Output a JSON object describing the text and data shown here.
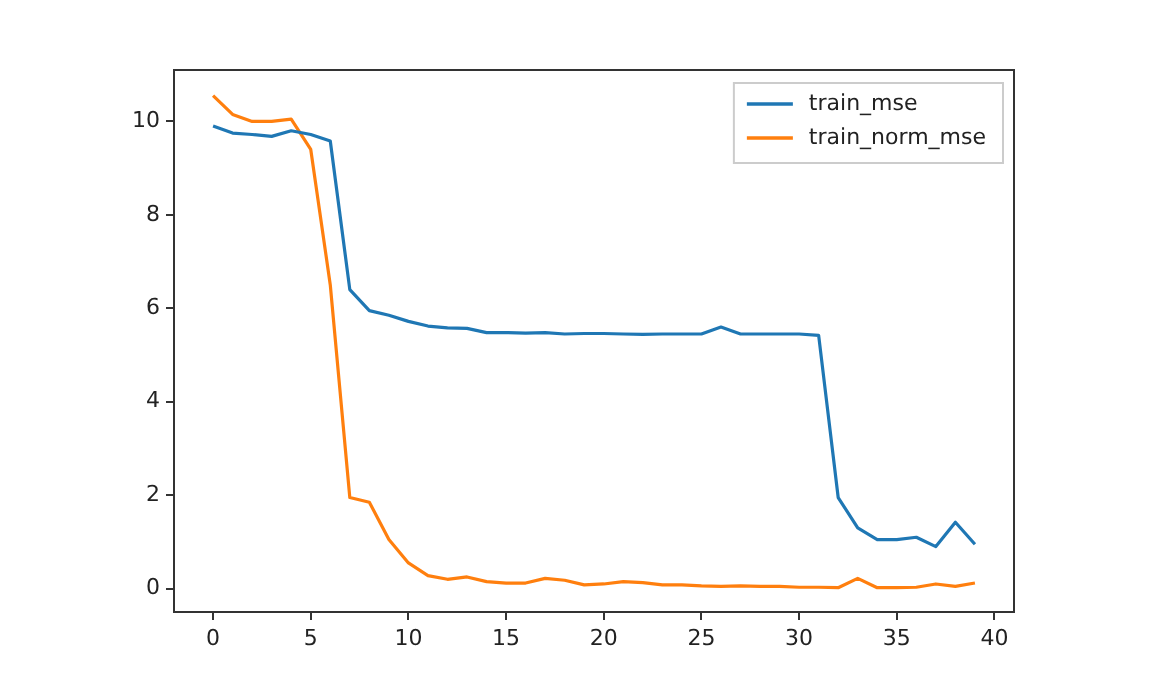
{
  "chart_data": {
    "type": "line",
    "x": [
      0,
      1,
      2,
      3,
      4,
      5,
      6,
      7,
      8,
      9,
      10,
      11,
      12,
      13,
      14,
      15,
      16,
      17,
      18,
      19,
      20,
      21,
      22,
      23,
      24,
      25,
      26,
      27,
      28,
      29,
      30,
      31,
      32,
      33,
      34,
      35,
      36,
      37,
      38,
      39
    ],
    "series": [
      {
        "name": "train_mse",
        "color": "#1f77b4",
        "values": [
          9.9,
          9.75,
          9.72,
          9.68,
          9.8,
          9.72,
          9.58,
          6.4,
          5.95,
          5.85,
          5.72,
          5.62,
          5.58,
          5.57,
          5.48,
          5.48,
          5.47,
          5.48,
          5.45,
          5.46,
          5.46,
          5.45,
          5.44,
          5.45,
          5.45,
          5.45,
          5.6,
          5.45,
          5.45,
          5.45,
          5.45,
          5.42,
          1.95,
          1.3,
          1.05,
          1.05,
          1.1,
          0.9,
          1.42,
          0.95
        ]
      },
      {
        "name": "train_norm_mse",
        "color": "#ff7f0e",
        "values": [
          10.55,
          10.15,
          10.0,
          10.0,
          10.05,
          9.4,
          6.5,
          1.95,
          1.85,
          1.05,
          0.55,
          0.28,
          0.2,
          0.25,
          0.15,
          0.12,
          0.12,
          0.22,
          0.18,
          0.08,
          0.1,
          0.15,
          0.13,
          0.08,
          0.08,
          0.06,
          0.05,
          0.06,
          0.05,
          0.05,
          0.03,
          0.03,
          0.02,
          0.22,
          0.02,
          0.02,
          0.03,
          0.1,
          0.05,
          0.12
        ]
      }
    ],
    "xlim": [
      -2,
      41
    ],
    "xticks": [
      0,
      5,
      10,
      15,
      20,
      25,
      30,
      35,
      40
    ],
    "ylim": [
      -0.5,
      11.1
    ],
    "yticks": [
      0,
      2,
      4,
      6,
      8,
      10
    ],
    "grid": false,
    "legend": "top right",
    "marker": "none",
    "line_style": "solid"
  }
}
